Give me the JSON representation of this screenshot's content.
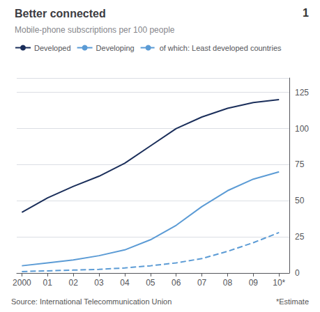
{
  "chart_data": {
    "type": "line",
    "title": "Better connected",
    "subtitle": "Mobile-phone subscriptions per 100 people",
    "annotations": [
      "1",
      "Source: International Telecommunication Union",
      "*Estimate"
    ],
    "x": [
      2000,
      2001,
      2002,
      2003,
      2004,
      2005,
      2006,
      2007,
      2008,
      2009,
      2010
    ],
    "series": [
      {
        "name": "Developed",
        "color": "#1a2e5a",
        "line_style": "solid",
        "values": [
          42,
          52,
          60,
          67,
          76,
          88,
          100,
          108,
          114,
          118,
          120
        ]
      },
      {
        "name": "Developing",
        "color": "#5b9bd5",
        "line_style": "solid",
        "values": [
          5,
          7,
          9,
          12,
          16,
          23,
          33,
          46,
          57,
          65,
          70
        ]
      },
      {
        "name": "of which: Least developed countries",
        "color": "#5b9bd5",
        "line_style": "dashed",
        "values": [
          1,
          1.5,
          2,
          2.5,
          3.5,
          5,
          7,
          10,
          15,
          21,
          28
        ]
      }
    ],
    "xlim": [
      1999.8,
      2010.4
    ],
    "xticks": [
      2000,
      {
        "value": 2001,
        "label": "01"
      },
      {
        "value": 2002,
        "label": "02"
      },
      {
        "value": 2003,
        "label": "03"
      },
      {
        "value": 2004,
        "label": "04"
      },
      {
        "value": 2005,
        "label": "05"
      },
      {
        "value": 2006,
        "label": "06"
      },
      {
        "value": 2007,
        "label": "07"
      },
      {
        "value": 2008,
        "label": "08"
      },
      {
        "value": 2009,
        "label": "09"
      },
      {
        "value": 2010,
        "label": "10*"
      }
    ],
    "ylim": [
      0,
      135
    ],
    "yticks": [
      0,
      25,
      50,
      75,
      100,
      125
    ],
    "grid": true,
    "legend": "upper left"
  }
}
